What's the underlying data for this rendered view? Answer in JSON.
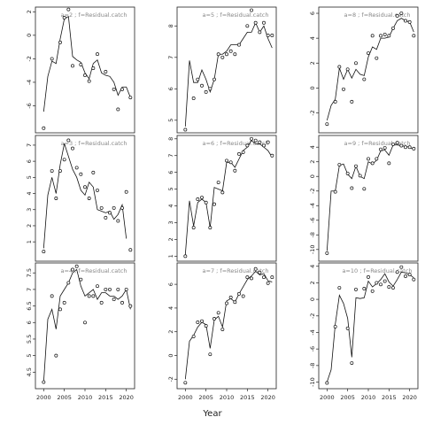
{
  "figure": {
    "xlabel": "Year"
  },
  "chart_data": [
    {
      "type": "line",
      "title": "a=2 ; f=Residual.catch",
      "xlim": [
        1998,
        2022
      ],
      "ylim": [
        -8.3,
        2.4
      ],
      "yticks": [
        -6,
        -4,
        -2,
        0,
        2
      ],
      "x": [
        2000,
        2001,
        2002,
        2003,
        2004,
        2005,
        2006,
        2007,
        2008,
        2009,
        2010,
        2011,
        2012,
        2013,
        2014,
        2015,
        2016,
        2017,
        2018,
        2019,
        2020,
        2021
      ],
      "model": [
        -6.5,
        -3.5,
        -2.2,
        -2.4,
        -0.3,
        1.4,
        1.6,
        -1.8,
        -2.1,
        -2.3,
        -3.2,
        -3.7,
        -2.4,
        -2.1,
        -3.2,
        -3.4,
        -3.5,
        -4.0,
        -5.1,
        -4.4,
        -4.4,
        -5.3
      ],
      "observed": [
        -7.9,
        null,
        -2.0,
        null,
        -0.6,
        1.5,
        2.2,
        -2.6,
        null,
        -2.5,
        -3.4,
        -3.9,
        -2.8,
        -1.6,
        null,
        -3.1,
        null,
        -4.6,
        -6.3,
        -4.6,
        null,
        -5.3
      ]
    },
    {
      "type": "line",
      "title": "a=5 ; f=Residual.catch",
      "xlim": [
        1998,
        2022
      ],
      "ylim": [
        4.6,
        8.6
      ],
      "yticks": [
        5,
        6,
        7,
        8
      ],
      "x": [
        2000,
        2001,
        2002,
        2003,
        2004,
        2005,
        2006,
        2007,
        2008,
        2009,
        2010,
        2011,
        2012,
        2013,
        2014,
        2015,
        2016,
        2017,
        2018,
        2019,
        2020,
        2021
      ],
      "model": [
        4.8,
        6.9,
        6.2,
        6.2,
        6.6,
        6.3,
        5.9,
        6.3,
        7.1,
        7.1,
        7.2,
        7.4,
        7.4,
        7.4,
        7.6,
        7.8,
        7.8,
        8.1,
        7.8,
        8.0,
        7.6,
        7.3
      ],
      "observed": [
        4.7,
        null,
        5.7,
        6.3,
        6.1,
        5.9,
        6.0,
        6.3,
        7.1,
        7.0,
        7.1,
        7.2,
        7.1,
        7.4,
        null,
        8.0,
        8.5,
        8.1,
        7.8,
        8.1,
        7.7,
        7.7
      ]
    },
    {
      "type": "line",
      "title": "a=8 ; f=Residual.catch",
      "xlim": [
        1998,
        2022
      ],
      "ylim": [
        -3.6,
        6.5
      ],
      "yticks": [
        -2,
        0,
        2,
        4,
        6
      ],
      "x": [
        2000,
        2001,
        2002,
        2003,
        2004,
        2005,
        2006,
        2007,
        2008,
        2009,
        2010,
        2011,
        2012,
        2013,
        2014,
        2015,
        2016,
        2017,
        2018,
        2019,
        2020,
        2021
      ],
      "model": [
        -2.6,
        -1.4,
        -0.9,
        1.6,
        0.7,
        1.5,
        0.8,
        1.5,
        1.1,
        1.0,
        2.5,
        3.3,
        3.1,
        4.0,
        4.0,
        4.1,
        4.8,
        5.4,
        5.6,
        5.4,
        5.3,
        4.5
      ],
      "observed": [
        -2.9,
        null,
        -1.1,
        1.7,
        -0.1,
        1.5,
        -1.1,
        2.0,
        null,
        0.7,
        2.8,
        4.2,
        2.4,
        4.2,
        4.3,
        4.2,
        4.8,
        5.8,
        6.0,
        5.4,
        5.3,
        4.2
      ]
    },
    {
      "type": "line",
      "title": "a=3 ; f=Residual.catch",
      "xlim": [
        1998,
        2022
      ],
      "ylim": [
        -0.2,
        7.6
      ],
      "yticks": [
        1,
        2,
        3,
        4,
        5,
        6,
        7
      ],
      "x": [
        2000,
        2001,
        2002,
        2003,
        2004,
        2005,
        2006,
        2007,
        2008,
        2009,
        2010,
        2011,
        2012,
        2013,
        2014,
        2015,
        2016,
        2017,
        2018,
        2019,
        2020,
        2021
      ],
      "model": [
        0.6,
        3.9,
        5.0,
        4.0,
        5.8,
        7.1,
        6.3,
        5.5,
        5.0,
        4.2,
        3.9,
        4.7,
        4.4,
        3.0,
        2.9,
        2.8,
        2.9,
        2.4,
        2.7,
        3.3,
        1.2,
        null
      ],
      "observed": [
        0.4,
        null,
        5.4,
        3.7,
        5.4,
        6.1,
        7.3,
        6.8,
        5.6,
        5.2,
        4.4,
        3.7,
        5.3,
        4.2,
        3.1,
        2.5,
        2.8,
        3.1,
        2.3,
        3.1,
        4.1,
        0.5
      ]
    },
    {
      "type": "line",
      "title": "a=6 ; f=Residual.catch",
      "xlim": [
        1998,
        2022
      ],
      "ylim": [
        0.7,
        8.2
      ],
      "yticks": [
        1,
        2,
        3,
        4,
        5,
        6,
        7,
        8
      ],
      "x": [
        2000,
        2001,
        2002,
        2003,
        2004,
        2005,
        2006,
        2007,
        2008,
        2009,
        2010,
        2011,
        2012,
        2013,
        2014,
        2015,
        2016,
        2017,
        2018,
        2019,
        2020,
        2021
      ],
      "model": [
        1.1,
        4.3,
        2.8,
        4.2,
        4.4,
        4.2,
        2.7,
        5.1,
        5.0,
        4.9,
        6.6,
        6.6,
        6.3,
        6.8,
        7.3,
        7.5,
        7.9,
        7.7,
        7.7,
        7.5,
        7.3,
        6.9
      ],
      "observed": [
        1.0,
        null,
        2.7,
        4.4,
        4.5,
        4.2,
        2.7,
        4.1,
        5.4,
        4.8,
        6.7,
        6.6,
        6.1,
        7.1,
        7.2,
        7.6,
        8.0,
        7.9,
        7.8,
        7.6,
        7.8,
        7.0
      ]
    },
    {
      "type": "line",
      "title": "a=9 ; f=Residual.catch",
      "xlim": [
        1998,
        2022
      ],
      "ylim": [
        -11.6,
        5.6
      ],
      "yticks": [
        -10,
        -8,
        -6,
        -4,
        -2,
        0,
        2,
        4
      ],
      "x": [
        2000,
        2001,
        2002,
        2003,
        2004,
        2005,
        2006,
        2007,
        2008,
        2009,
        2010,
        2011,
        2012,
        2013,
        2014,
        2015,
        2016,
        2017,
        2018,
        2019,
        2020,
        2021
      ],
      "model": [
        -10.2,
        -2.0,
        -2.0,
        1.5,
        1.7,
        0.3,
        -0.3,
        1.4,
        0.0,
        -0.3,
        2.0,
        1.7,
        2.2,
        3.5,
        3.6,
        2.9,
        4.3,
        4.3,
        4.2,
        4.1,
        4.0,
        3.7
      ],
      "observed": [
        -10.5,
        null,
        -2.1,
        1.6,
        null,
        0.4,
        -1.6,
        1.4,
        0.1,
        -1.7,
        2.4,
        1.8,
        2.4,
        3.7,
        3.9,
        1.8,
        4.4,
        4.6,
        4.2,
        4.0,
        4.0,
        3.8
      ]
    },
    {
      "type": "line",
      "title": "a=4 ; f=Residual.catch",
      "xlim": [
        1998,
        2022
      ],
      "ylim": [
        4.0,
        7.8
      ],
      "yticks": [
        4.5,
        5.0,
        5.5,
        6.0,
        6.5,
        7.0,
        7.5
      ],
      "x": [
        2000,
        2001,
        2002,
        2003,
        2004,
        2005,
        2006,
        2007,
        2008,
        2009,
        2010,
        2011,
        2012,
        2013,
        2014,
        2015,
        2016,
        2017,
        2018,
        2019,
        2020,
        2021
      ],
      "model": [
        4.2,
        6.1,
        6.4,
        5.8,
        6.8,
        7.0,
        7.2,
        7.5,
        7.6,
        7.1,
        6.8,
        6.9,
        7.0,
        6.7,
        6.9,
        6.9,
        6.8,
        6.8,
        6.7,
        6.8,
        7.0,
        6.4
      ],
      "observed": [
        4.2,
        null,
        6.8,
        5.0,
        6.4,
        6.6,
        7.2,
        7.6,
        7.7,
        7.3,
        6.0,
        6.8,
        6.8,
        7.1,
        6.6,
        7.0,
        7.0,
        6.7,
        7.0,
        6.6,
        7.0,
        6.5
      ]
    },
    {
      "type": "line",
      "title": "a=7 ; f=Residual.catch",
      "xlim": [
        1998,
        2022
      ],
      "ylim": [
        -2.8,
        7.8
      ],
      "yticks": [
        -2,
        0,
        2,
        4,
        6
      ],
      "x": [
        2000,
        2001,
        2002,
        2003,
        2004,
        2005,
        2006,
        2007,
        2008,
        2009,
        2010,
        2011,
        2012,
        2013,
        2014,
        2015,
        2016,
        2017,
        2018,
        2019,
        2020,
        2021
      ],
      "model": [
        -2.0,
        1.2,
        1.7,
        2.4,
        2.8,
        2.6,
        0.6,
        3.0,
        3.3,
        2.4,
        4.6,
        4.8,
        4.5,
        5.2,
        5.8,
        6.4,
        6.7,
        7.1,
        6.8,
        6.9,
        6.3,
        6.2
      ],
      "observed": [
        -2.3,
        null,
        1.6,
        2.8,
        2.9,
        2.5,
        0.1,
        3.1,
        3.6,
        2.2,
        4.4,
        4.9,
        4.5,
        5.2,
        5.0,
        6.6,
        6.5,
        7.3,
        7.0,
        6.6,
        6.1,
        6.6
      ]
    },
    {
      "type": "line",
      "title": "a=10 ; f=Residual.catch",
      "xlim": [
        1998,
        2022
      ],
      "ylim": [
        -10.8,
        4.4
      ],
      "yticks": [
        -10,
        -8,
        -6,
        -4,
        -2,
        0,
        2,
        4
      ],
      "x": [
        2000,
        2001,
        2002,
        2003,
        2004,
        2005,
        2006,
        2007,
        2008,
        2009,
        2010,
        2011,
        2012,
        2013,
        2014,
        2015,
        2016,
        2017,
        2018,
        2019,
        2020,
        2021
      ],
      "model": [
        -10.0,
        -8.5,
        -3.0,
        0.5,
        -0.5,
        -2.3,
        -7.0,
        0.2,
        0.1,
        0.2,
        2.2,
        1.5,
        1.9,
        2.4,
        3.1,
        2.1,
        1.6,
        2.4,
        3.3,
        3.2,
        3.0,
        2.6
      ],
      "observed": [
        -10.1,
        null,
        -3.3,
        1.4,
        null,
        -3.5,
        -7.7,
        1.2,
        null,
        1.3,
        2.7,
        1.0,
        2.0,
        1.8,
        2.2,
        1.5,
        1.4,
        3.3,
        3.9,
        2.8,
        3.0,
        2.4
      ]
    }
  ]
}
